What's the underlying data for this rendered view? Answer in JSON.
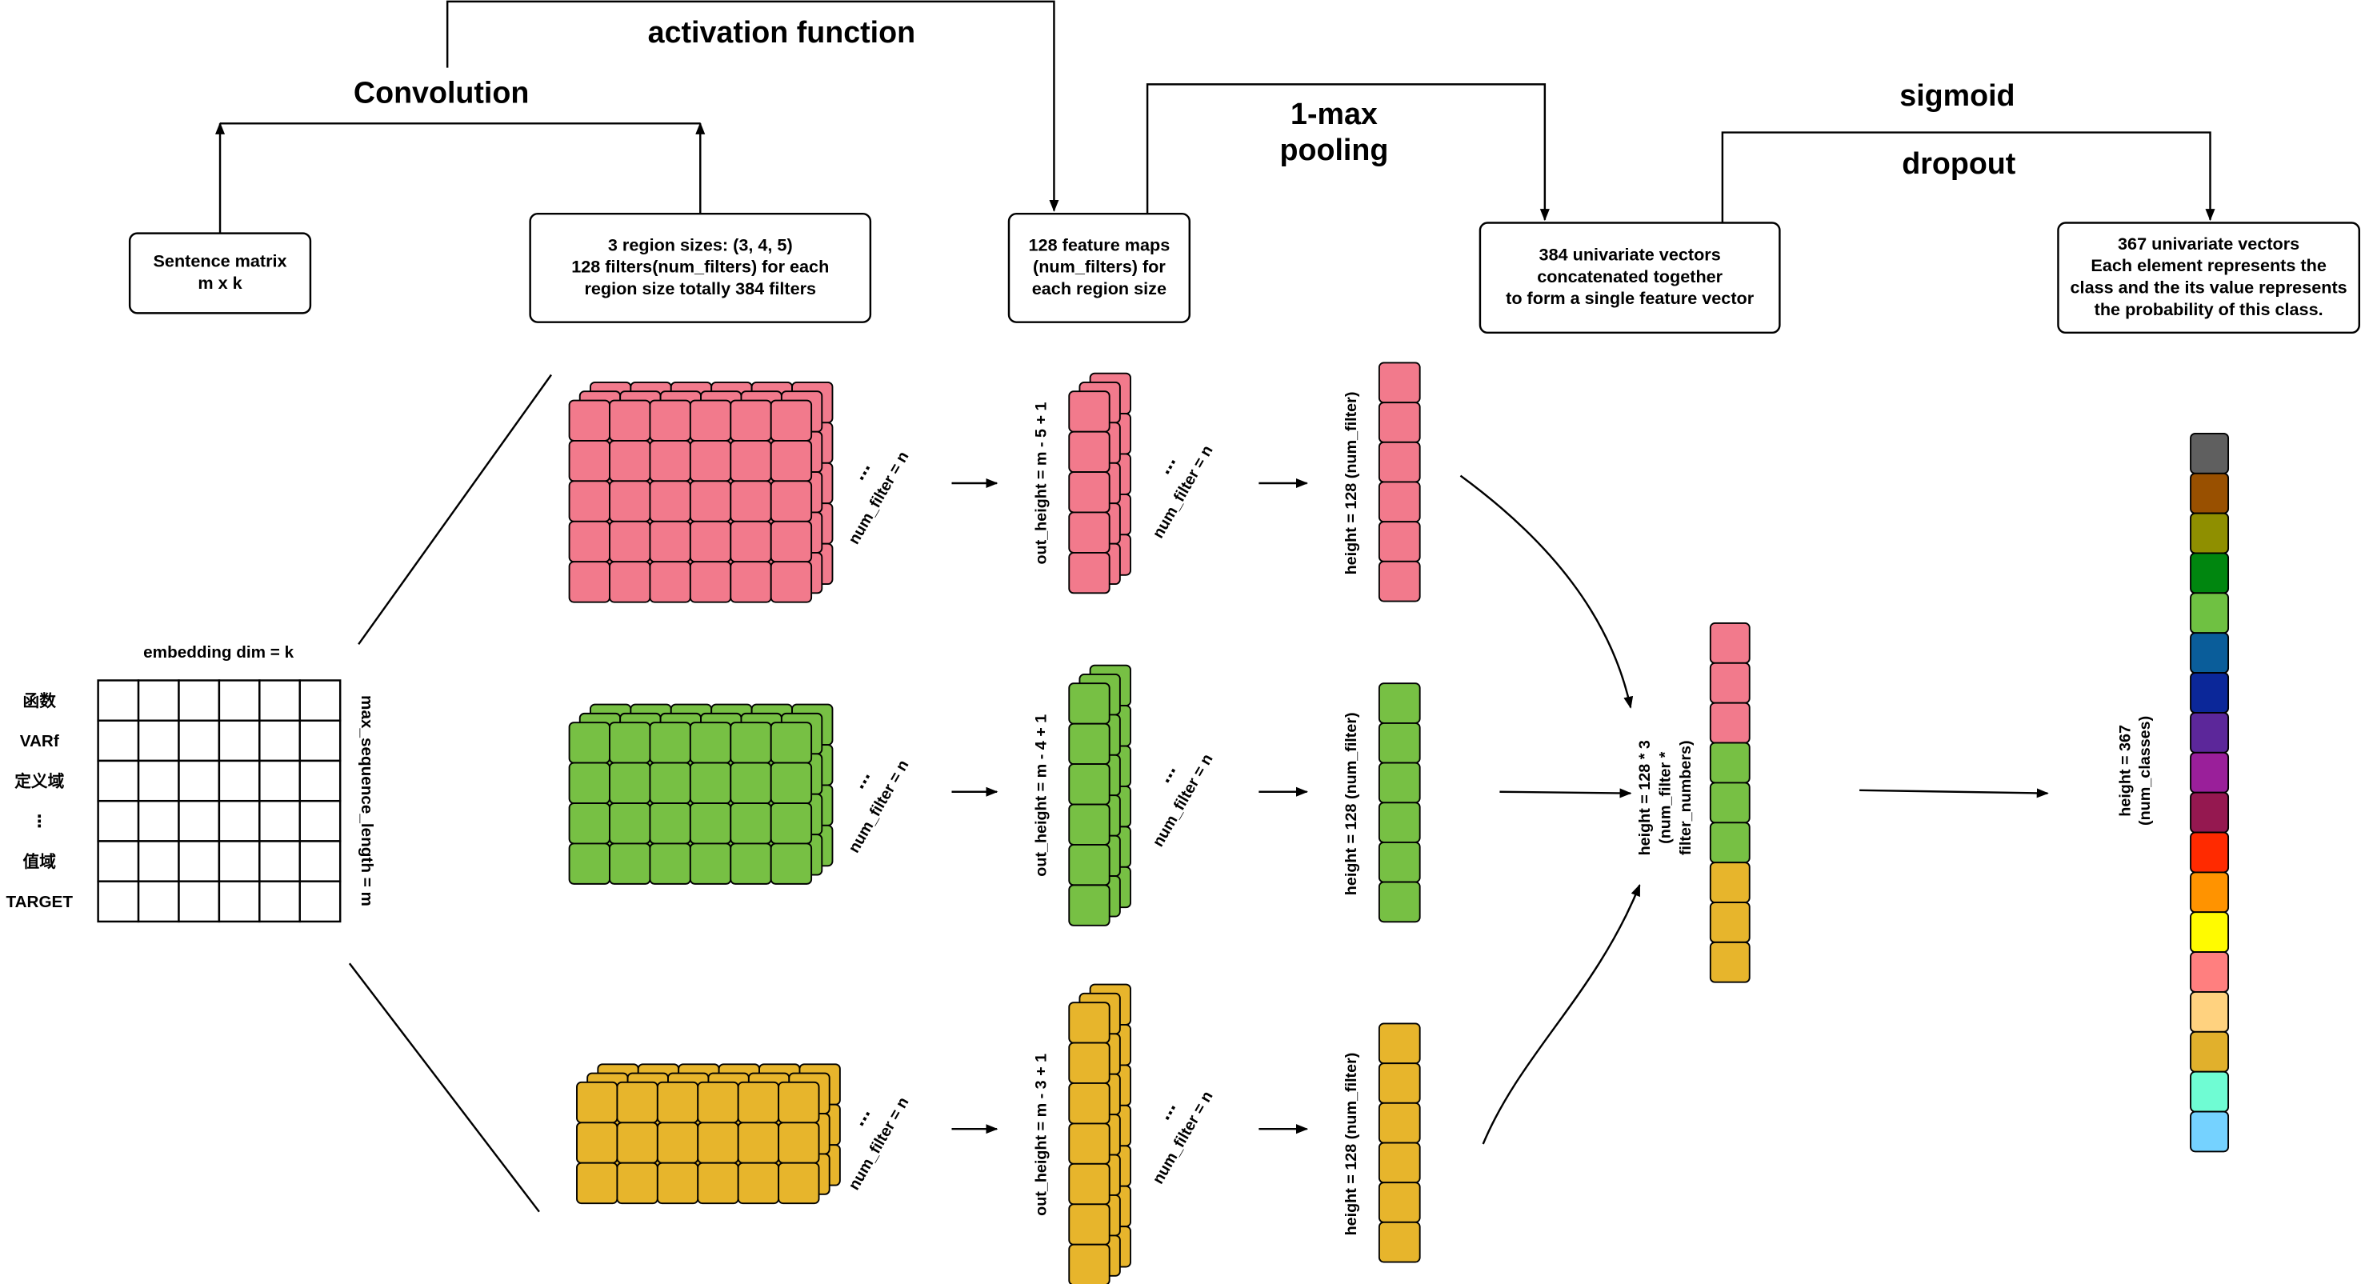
{
  "labels": {
    "convolution": "Convolution",
    "activation": "activation function",
    "pooling": [
      "1-max",
      "pooling"
    ],
    "sigmoid": "sigmoid",
    "dropout": "dropout"
  },
  "boxes": [
    {
      "lines": [
        "Sentence matrix",
        "m x k"
      ]
    },
    {
      "lines": [
        "3 region sizes: (3, 4, 5)",
        "128 filters(num_filters) for each",
        "region size totally 384 filters"
      ]
    },
    {
      "lines": [
        "128 feature maps",
        "(num_filters) for",
        "each region size"
      ]
    },
    {
      "lines": [
        "384 univariate vectors",
        "concatenated together",
        "to form a single feature vector"
      ]
    },
    {
      "lines": [
        "367 univariate vectors",
        "Each element represents the",
        "class and the its value represents",
        "the probability of this class."
      ]
    }
  ],
  "matrix": {
    "header": "embedding dim = k",
    "rows": [
      "函数",
      "VARf",
      "定义域",
      "⋮",
      "值域",
      "TARGET"
    ],
    "side": "max_sequence_length = m"
  },
  "ellipsis": "...",
  "branches": [
    {
      "num_filter": "num_filter = n",
      "out_height": "out_height = m - 5 + 1",
      "pool_height": "height = 128 (num_filter)"
    },
    {
      "num_filter": "num_filter = n",
      "out_height": "out_height = m - 4 + 1",
      "pool_height": "height = 128 (num_filter)"
    },
    {
      "num_filter": "num_filter = n",
      "out_height": "out_height = m - 3 + 1",
      "pool_height": "height = 128 (num_filter)"
    }
  ],
  "concat": [
    "height = 128 * 3",
    "(num_filter *",
    "filter_numbers)"
  ],
  "output": [
    "height = 367",
    "(num_classes)"
  ]
}
